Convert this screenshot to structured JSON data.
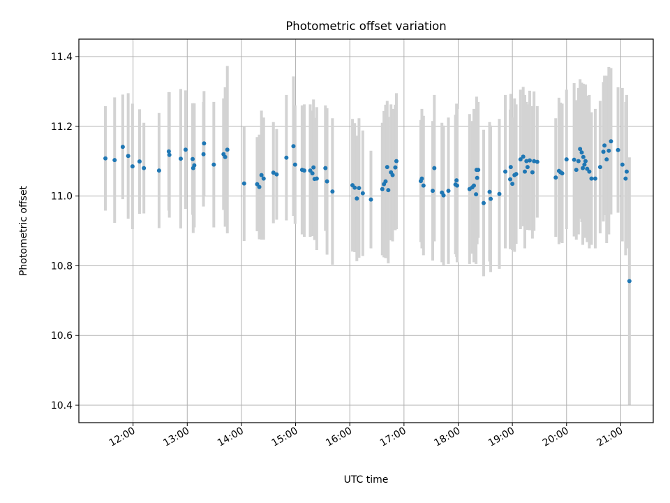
{
  "chart_data": {
    "type": "scatter",
    "title": "Photometric offset variation",
    "xlabel": "UTC time",
    "ylabel": "Photometric offset",
    "grid": true,
    "xlim_hours": [
      11.0,
      21.6
    ],
    "ylim": [
      10.35,
      11.45
    ],
    "x_ticks": [
      {
        "value": 12,
        "label": "12:00"
      },
      {
        "value": 13,
        "label": "13:00"
      },
      {
        "value": 14,
        "label": "14:00"
      },
      {
        "value": 15,
        "label": "15:00"
      },
      {
        "value": 16,
        "label": "16:00"
      },
      {
        "value": 17,
        "label": "17:00"
      },
      {
        "value": 18,
        "label": "18:00"
      },
      {
        "value": 19,
        "label": "19:00"
      },
      {
        "value": 20,
        "label": "20:00"
      },
      {
        "value": 21,
        "label": "21:00"
      }
    ],
    "y_ticks": [
      {
        "value": 10.4,
        "label": "10.4"
      },
      {
        "value": 10.6,
        "label": "10.6"
      },
      {
        "value": 10.8,
        "label": "10.8"
      },
      {
        "value": 11.0,
        "label": "11.0"
      },
      {
        "value": 11.2,
        "label": "11.2"
      },
      {
        "value": 11.4,
        "label": "11.4"
      }
    ],
    "colors": {
      "point": "#1f77b4",
      "errorbar": "#d3d3d3",
      "grid": "#b0b0b0"
    },
    "series": [
      {
        "name": "offset",
        "points": [
          [
            11.49,
            11.108,
            0.15
          ],
          [
            11.66,
            11.103,
            0.18
          ],
          [
            11.81,
            11.141,
            0.15
          ],
          [
            11.91,
            11.115,
            0.18
          ],
          [
            11.99,
            11.085,
            0.18
          ],
          [
            12.12,
            11.099,
            0.15
          ],
          [
            12.2,
            11.08,
            0.13
          ],
          [
            12.48,
            11.073,
            0.165
          ],
          [
            12.66,
            11.128,
            0.17
          ],
          [
            12.67,
            11.118,
            0.18
          ],
          [
            12.88,
            11.107,
            0.2
          ],
          [
            12.97,
            11.133,
            0.17
          ],
          [
            13.1,
            11.106,
            0.16
          ],
          [
            13.11,
            11.08,
            0.186
          ],
          [
            13.13,
            11.088,
            0.178
          ],
          [
            13.3,
            11.12,
            0.15
          ],
          [
            13.31,
            11.151,
            0.15
          ],
          [
            13.49,
            11.09,
            0.18
          ],
          [
            13.67,
            11.12,
            0.16
          ],
          [
            13.7,
            11.112,
            0.2
          ],
          [
            13.74,
            11.133,
            0.24
          ],
          [
            14.05,
            11.036,
            0.165
          ],
          [
            14.29,
            11.034,
            0.135
          ],
          [
            14.33,
            11.026,
            0.15
          ],
          [
            14.37,
            11.06,
            0.185
          ],
          [
            14.41,
            11.05,
            0.175
          ],
          [
            14.59,
            11.067,
            0.145
          ],
          [
            14.65,
            11.062,
            0.13
          ],
          [
            14.83,
            11.11,
            0.18
          ],
          [
            14.96,
            11.143,
            0.2
          ],
          [
            14.99,
            11.09,
            0.17
          ],
          [
            15.12,
            11.075,
            0.185
          ],
          [
            15.16,
            11.073,
            0.19
          ],
          [
            15.27,
            11.073,
            0.19
          ],
          [
            15.31,
            11.065,
            0.18
          ],
          [
            15.33,
            11.082,
            0.195
          ],
          [
            15.35,
            11.049,
            0.175
          ],
          [
            15.39,
            11.05,
            0.205
          ],
          [
            15.55,
            11.08,
            0.18
          ],
          [
            15.58,
            11.042,
            0.21
          ],
          [
            15.68,
            11.013,
            0.21
          ],
          [
            16.05,
            11.031,
            0.19
          ],
          [
            16.09,
            11.024,
            0.185
          ],
          [
            16.13,
            10.993,
            0.18
          ],
          [
            16.17,
            11.023,
            0.2
          ],
          [
            16.24,
            11.008,
            0.18
          ],
          [
            16.39,
            10.99,
            0.14
          ],
          [
            16.6,
            11.02,
            0.19
          ],
          [
            16.63,
            11.034,
            0.21
          ],
          [
            16.66,
            11.042,
            0.22
          ],
          [
            16.69,
            11.083,
            0.19
          ],
          [
            16.71,
            11.017,
            0.21
          ],
          [
            16.76,
            11.068,
            0.195
          ],
          [
            16.79,
            11.06,
            0.19
          ],
          [
            16.84,
            11.082,
            0.18
          ],
          [
            16.86,
            11.1,
            0.195
          ],
          [
            17.31,
            11.043,
            0.175
          ],
          [
            17.33,
            11.05,
            0.2
          ],
          [
            17.36,
            11.03,
            0.2
          ],
          [
            17.53,
            11.015,
            0.2
          ],
          [
            17.56,
            11.08,
            0.21
          ],
          [
            17.7,
            11.01,
            0.2
          ],
          [
            17.73,
            11.002,
            0.2
          ],
          [
            17.82,
            11.015,
            0.21
          ],
          [
            17.95,
            11.033,
            0.2
          ],
          [
            17.97,
            11.045,
            0.22
          ],
          [
            17.98,
            11.03,
            0.22
          ],
          [
            18.21,
            11.02,
            0.215
          ],
          [
            18.26,
            11.025,
            0.19
          ],
          [
            18.29,
            11.03,
            0.22
          ],
          [
            18.33,
            11.005,
            0.2
          ],
          [
            18.34,
            11.075,
            0.21
          ],
          [
            18.35,
            11.052,
            0.19
          ],
          [
            18.37,
            11.075,
            0.195
          ],
          [
            18.47,
            10.98,
            0.21
          ],
          [
            18.58,
            11.012,
            0.2
          ],
          [
            18.6,
            10.992,
            0.21
          ],
          [
            18.76,
            11.006,
            0.215
          ],
          [
            18.87,
            11.07,
            0.22
          ],
          [
            18.96,
            11.048,
            0.2
          ],
          [
            18.97,
            11.083,
            0.21
          ],
          [
            19.0,
            11.035,
            0.19
          ],
          [
            19.04,
            11.06,
            0.22
          ],
          [
            19.07,
            11.063,
            0.2
          ],
          [
            19.15,
            11.105,
            0.2
          ],
          [
            19.2,
            11.113,
            0.2
          ],
          [
            19.23,
            11.07,
            0.22
          ],
          [
            19.26,
            11.1,
            0.17
          ],
          [
            19.28,
            11.083,
            0.18
          ],
          [
            19.32,
            11.102,
            0.2
          ],
          [
            19.37,
            11.068,
            0.19
          ],
          [
            19.4,
            11.1,
            0.2
          ],
          [
            19.46,
            11.098,
            0.16
          ],
          [
            19.8,
            11.053,
            0.17
          ],
          [
            19.86,
            11.072,
            0.21
          ],
          [
            19.89,
            11.068,
            0.2
          ],
          [
            19.92,
            11.065,
            0.2
          ],
          [
            20.0,
            11.105,
            0.2
          ],
          [
            20.14,
            11.104,
            0.22
          ],
          [
            20.18,
            11.075,
            0.2
          ],
          [
            20.22,
            11.1,
            0.21
          ],
          [
            20.25,
            11.135,
            0.2
          ],
          [
            20.28,
            11.125,
            0.2
          ],
          [
            20.3,
            11.08,
            0.22
          ],
          [
            20.31,
            11.112,
            0.21
          ],
          [
            20.33,
            11.09,
            0.2
          ],
          [
            20.35,
            11.1,
            0.22
          ],
          [
            20.38,
            11.078,
            0.21
          ],
          [
            20.42,
            11.07,
            0.22
          ],
          [
            20.46,
            11.05,
            0.19
          ],
          [
            20.53,
            11.05,
            0.2
          ],
          [
            20.62,
            11.083,
            0.19
          ],
          [
            20.68,
            11.127,
            0.2
          ],
          [
            20.7,
            11.145,
            0.2
          ],
          [
            20.74,
            11.105,
            0.24
          ],
          [
            20.78,
            11.13,
            0.24
          ],
          [
            20.82,
            11.157,
            0.21
          ],
          [
            20.95,
            11.132,
            0.18
          ],
          [
            21.03,
            11.09,
            0.22
          ],
          [
            21.09,
            11.05,
            0.22
          ],
          [
            21.11,
            11.07,
            0.22
          ],
          [
            21.16,
            10.756,
            0.355
          ]
        ]
      }
    ]
  }
}
